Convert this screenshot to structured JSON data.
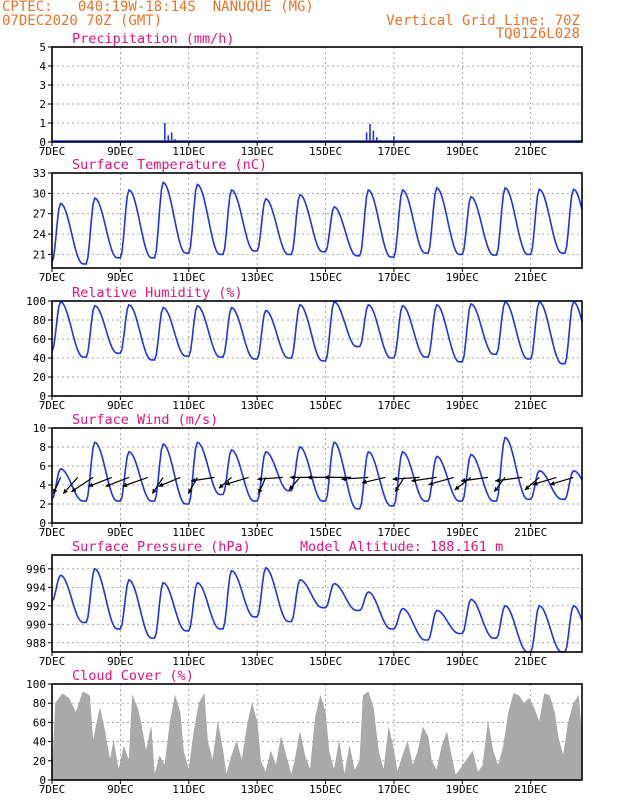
{
  "header": {
    "line1": "CPTEC:   040:19W-18:14S  NANUQUE (MG)",
    "line2": "07DEC2020 70Z (GMT)",
    "right1": "Vertical Grid Line: 70Z",
    "right2": "TQ0126L028"
  },
  "x_tick_labels": [
    "7DEC",
    "9DEC",
    "11DEC",
    "13DEC",
    "15DEC",
    "17DEC",
    "19DEC",
    "21DEC"
  ],
  "colors": {
    "header": "#e8742a",
    "title": "#e0147a",
    "series": "#2233dd",
    "cloud": "#aaaaaa"
  },
  "chart_data": [
    {
      "type": "bar",
      "title": "Precipitation (mm/h)",
      "ylim": [
        0,
        5
      ],
      "yticks": [
        "0",
        "1",
        "2",
        "3",
        "4",
        "5"
      ],
      "x": [
        3.3,
        3.4,
        3.5,
        3.6,
        9.2,
        9.3,
        9.4,
        9.5,
        9.6,
        10.0
      ],
      "values": [
        1.0,
        0.35,
        0.5,
        0.15,
        0.5,
        0.95,
        0.6,
        0.25,
        0.1,
        0.3
      ]
    },
    {
      "type": "line",
      "title": "Surface Temperature (nC)",
      "ylim": [
        19,
        33
      ],
      "yticks": [
        "21",
        "24",
        "27",
        "30",
        "33"
      ],
      "minima": [
        19.8,
        19.6,
        20.5,
        20.5,
        21.2,
        21.0,
        21.5,
        21.0,
        21.4,
        20.8,
        20.6,
        21.2,
        21.0,
        20.9,
        21.0,
        21.2
      ],
      "maxima": [
        28.5,
        29.3,
        30.5,
        31.6,
        31.3,
        30.5,
        29.2,
        29.8,
        28.0,
        30.5,
        30.5,
        30.8,
        29.5,
        30.8,
        30.6
      ]
    },
    {
      "type": "line",
      "title": "Relative Humidity (%)",
      "ylim": [
        0,
        100
      ],
      "yticks": [
        "0",
        "20",
        "40",
        "60",
        "80",
        "100"
      ],
      "minima": [
        47,
        41,
        45,
        38,
        42,
        41,
        39,
        40,
        37,
        52,
        40,
        41,
        36,
        44,
        39,
        34
      ],
      "maxima": [
        99,
        95,
        96,
        93,
        95,
        93,
        90,
        96,
        99,
        96,
        95,
        96,
        97,
        99
      ]
    },
    {
      "type": "line",
      "title": "Surface Wind (m/s)",
      "ylim": [
        0,
        10
      ],
      "yticks": [
        "0",
        "2",
        "4",
        "6",
        "8",
        "10"
      ],
      "minima": [
        2.5,
        2.3,
        2.3,
        2.3,
        2.0,
        3.0,
        2.3,
        3.4,
        2.3,
        1.5,
        1.8,
        2.3,
        2.3,
        2.3,
        2.5,
        2.5
      ],
      "maxima": [
        5.7,
        8.5,
        7.5,
        8.3,
        8.5,
        7.7,
        7.5,
        8.0,
        8.5,
        7.5,
        7.5,
        7.0,
        7.2,
        9.0,
        5.5
      ],
      "vector_x": [
        0.5,
        1.5,
        2.4,
        3.5,
        4.5,
        5.6,
        6.5,
        7.5,
        8.5,
        9.5,
        10.5,
        11.5,
        12.5,
        13.5,
        14.5,
        15.5,
        16.5,
        17.5,
        18.5,
        19.5,
        20.6,
        21.5,
        22.5,
        23.5,
        24.5,
        25.5,
        26.5,
        27.5,
        28.5,
        29.5,
        30.5
      ],
      "vector_u": [
        -0.4,
        -0.8,
        -1.2,
        -1.3,
        -1.3,
        -1.4,
        -0.6,
        -1.2,
        -0.5,
        -1.3,
        -0.7,
        -1.3,
        -0.4,
        -1.4,
        -0.6,
        -1.5,
        -1.5,
        -1.5,
        -1.5,
        -1.3,
        -0.5,
        -1.5,
        -1.4,
        -1.4,
        -0.9,
        -1.5,
        -0.6,
        -1.5,
        -0.8,
        -1.3,
        -1.3
      ],
      "vector_v": [
        -0.9,
        -0.9,
        -0.8,
        -0.5,
        -0.5,
        -0.5,
        -0.9,
        -0.5,
        -0.9,
        -0.2,
        -0.6,
        -0.4,
        -0.9,
        -0.1,
        -0.7,
        0.0,
        0.0,
        0.0,
        -0.1,
        -0.3,
        -0.8,
        -0.1,
        -0.2,
        -0.4,
        -0.7,
        -0.2,
        -0.8,
        -0.2,
        -0.7,
        -0.4,
        -0.4
      ]
    },
    {
      "type": "line",
      "title": "Surface Pressure (hPa)",
      "annotation": "Model Altitude: 188.161 m",
      "ylim": [
        987,
        997.5
      ],
      "yticks": [
        "988",
        "990",
        "992",
        "994",
        "996"
      ],
      "minima": [
        992.5,
        990.2,
        989.5,
        988.5,
        989.3,
        989.5,
        990.8,
        990.3,
        991.8,
        991.5,
        989.5,
        988.3,
        989.0,
        988.5,
        987.0
      ],
      "maxima": [
        995.3,
        996.0,
        994.8,
        994.5,
        994.5,
        995.8,
        996.1,
        994.8,
        994.4,
        993.5,
        991.7,
        991.5,
        992.7,
        992.0
      ],
      "amplitude": 1.8
    },
    {
      "type": "area",
      "title": "Cloud Cover (%)",
      "ylim": [
        0,
        100
      ],
      "yticks": [
        "0",
        "20",
        "40",
        "60",
        "80",
        "100"
      ],
      "x": [
        0,
        0.1,
        0.3,
        0.5,
        0.7,
        0.9,
        1.1,
        1.2,
        1.4,
        1.55,
        1.7,
        1.8,
        1.95,
        2.1,
        2.25,
        2.35,
        2.5,
        2.6,
        2.75,
        2.9,
        3.0,
        3.15,
        3.3,
        3.45,
        3.6,
        3.75,
        3.85,
        4.0,
        4.15,
        4.3,
        4.45,
        4.55,
        4.7,
        4.85,
        5.0,
        5.1,
        5.25,
        5.4,
        5.55,
        5.7,
        5.85,
        6.0,
        6.1,
        6.25,
        6.4,
        6.55,
        6.7,
        6.85,
        7.0,
        7.1,
        7.25,
        7.4,
        7.55,
        7.7,
        7.85,
        8.0,
        8.1,
        8.25,
        8.4,
        8.55,
        8.7,
        8.85,
        9.0,
        9.1,
        9.25,
        9.4,
        9.55,
        9.7,
        9.85,
        10.0,
        10.1,
        10.25,
        10.4,
        10.55,
        10.7,
        10.85,
        11.0,
        11.1,
        11.25,
        11.4,
        11.55,
        11.65,
        11.8,
        11.95,
        12.1,
        12.3,
        12.45,
        12.6,
        12.75,
        12.9,
        13.05,
        13.2,
        13.35,
        13.5,
        13.65,
        13.8,
        13.95,
        14.1,
        14.25,
        14.4,
        14.55,
        14.7,
        14.8,
        14.95,
        15.1,
        15.25,
        15.4,
        15.5
      ],
      "values": [
        0,
        80,
        90,
        85,
        70,
        92,
        88,
        40,
        75,
        50,
        20,
        40,
        10,
        35,
        20,
        88,
        75,
        60,
        30,
        55,
        5,
        25,
        15,
        60,
        88,
        70,
        30,
        10,
        50,
        80,
        90,
        40,
        20,
        60,
        30,
        5,
        25,
        40,
        20,
        55,
        80,
        60,
        20,
        8,
        30,
        15,
        45,
        25,
        5,
        20,
        50,
        25,
        10,
        65,
        88,
        70,
        30,
        10,
        40,
        5,
        35,
        10,
        20,
        88,
        92,
        75,
        30,
        10,
        55,
        30,
        8,
        25,
        40,
        15,
        30,
        55,
        45,
        20,
        10,
        35,
        50,
        30,
        5,
        12,
        20,
        30,
        8,
        15,
        60,
        30,
        15,
        35,
        70,
        90,
        88,
        80,
        85,
        75,
        60,
        90,
        88,
        70,
        45,
        25,
        60,
        80,
        88,
        40
      ]
    }
  ]
}
